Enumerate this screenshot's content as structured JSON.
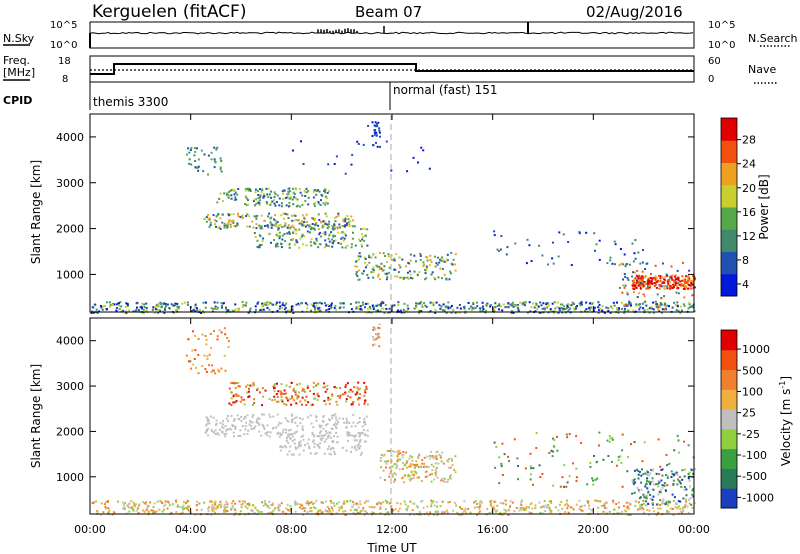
{
  "header": {
    "radar": "Kerguelen (fitACF)",
    "beam": "Beam 07",
    "date": "02/Aug/2016"
  },
  "noise_panel": {
    "left_label": "N.Sky",
    "right_label": "N.Search",
    "left_ticks": [
      "10^5",
      "10^0"
    ],
    "right_ticks": [
      "10^5",
      "10^0"
    ]
  },
  "freq_panel": {
    "left_label_1": "Freq.",
    "left_label_2": "[MHz]",
    "right_label": "Nave",
    "cpid_label": "CPID",
    "left_ticks": [
      "18",
      "8"
    ],
    "right_ticks": [
      "60",
      "0"
    ]
  },
  "cpid": {
    "modes": [
      "themis 3300",
      "normal (fast) 151"
    ]
  },
  "chart_data": [
    {
      "type": "heatmap",
      "quantity": "Power",
      "ylabel": "Slant Range [km]",
      "xlabel": "Time UT",
      "x_ticks": [
        "00:00",
        "04:00",
        "08:00",
        "12:00",
        "16:00",
        "20:00",
        "00:00"
      ],
      "y_ticks": [
        "1000",
        "2000",
        "3000",
        "4000"
      ],
      "xlim": [
        0,
        24
      ],
      "ylim": [
        180,
        4500
      ],
      "colorbar": {
        "label": "Power [dB]",
        "ticks": [
          "28",
          "24",
          "20",
          "16",
          "12",
          "8",
          "4"
        ],
        "range": [
          0,
          30
        ],
        "colors": [
          "#0018d8",
          "#2050b0",
          "#3f8a6a",
          "#56a848",
          "#c8d030",
          "#f0a020",
          "#f05010",
          "#e00000"
        ]
      }
    },
    {
      "type": "heatmap",
      "quantity": "Velocity",
      "ylabel": "Slant Range [km]",
      "xlabel": "Time UT",
      "x_ticks": [
        "00:00",
        "04:00",
        "08:00",
        "12:00",
        "16:00",
        "20:00",
        "00:00"
      ],
      "y_ticks": [
        "1000",
        "2000",
        "3000",
        "4000"
      ],
      "xlim": [
        0,
        24
      ],
      "ylim": [
        180,
        4500
      ],
      "colorbar": {
        "label_main": "Velocity",
        "label_units": "[m s",
        "label_exp": "-1",
        "label_close": "]",
        "ticks": [
          "1000",
          "500",
          "100",
          "25",
          "-25",
          "-100",
          "-500",
          "-1000"
        ],
        "range": [
          -1000,
          1000
        ],
        "colors": [
          "#1a3fbf",
          "#2a7a5a",
          "#3aa040",
          "#90d040",
          "#c0c0c0",
          "#f0b040",
          "#f08030",
          "#f05010",
          "#e00000"
        ]
      }
    }
  ]
}
